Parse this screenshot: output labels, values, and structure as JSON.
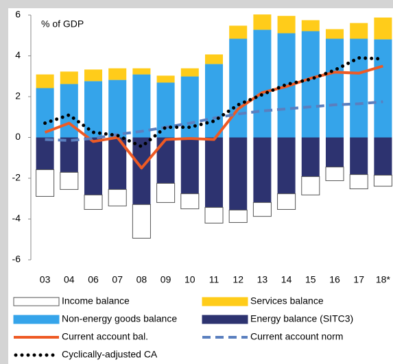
{
  "chart_data": {
    "type": "bar",
    "y_label": "% of GDP",
    "categories": [
      "03",
      "04",
      "06",
      "07",
      "08",
      "09",
      "10",
      "11",
      "12",
      "13",
      "14",
      "15",
      "16",
      "17",
      "18*"
    ],
    "ylim": [
      -6,
      6
    ],
    "yticks": [
      -6,
      -4,
      -2,
      0,
      2,
      4,
      6
    ],
    "legend": "bottom",
    "stacked": true,
    "series": [
      {
        "name": "Income balance",
        "type": "bar",
        "color": "#ffffff",
        "values": [
          -1.31,
          -0.84,
          -0.71,
          -0.81,
          -1.65,
          -0.94,
          -0.74,
          -0.77,
          -0.61,
          -0.68,
          -0.77,
          -0.9,
          -0.67,
          -0.7,
          -0.54
        ]
      },
      {
        "name": "Services balance",
        "type": "bar",
        "color": "#ffcc1a",
        "values": [
          0.67,
          0.61,
          0.57,
          0.57,
          0.3,
          0.34,
          0.4,
          0.47,
          0.64,
          0.75,
          0.85,
          0.54,
          0.47,
          0.77,
          1.07
        ]
      },
      {
        "name": "Non-energy goods balance",
        "type": "bar",
        "color": "#35a4ea",
        "values": [
          2.42,
          2.62,
          2.76,
          2.82,
          3.09,
          2.69,
          2.99,
          3.6,
          4.84,
          5.28,
          5.11,
          5.21,
          4.84,
          4.84,
          4.81
        ]
      },
      {
        "name": "Energy balance (SITC3)",
        "type": "bar",
        "color": "#2d3370",
        "values": [
          -1.58,
          -1.71,
          -2.82,
          -2.55,
          -3.29,
          -2.25,
          -2.76,
          -3.43,
          -3.56,
          -3.19,
          -2.76,
          -1.92,
          -1.45,
          -1.82,
          -1.85
        ]
      },
      {
        "name": "Current account bal.",
        "type": "line",
        "style": "solid",
        "color": "#ee5a24",
        "values": [
          0.25,
          0.7,
          -0.2,
          0.0,
          -1.5,
          -0.1,
          -0.05,
          -0.1,
          1.4,
          2.2,
          2.5,
          2.9,
          3.2,
          3.15,
          3.5
        ]
      },
      {
        "name": "Current account norm",
        "type": "line",
        "style": "dashed",
        "color": "#5a7fbf",
        "values": [
          -0.1,
          -0.15,
          -0.05,
          0.15,
          0.3,
          0.5,
          0.7,
          0.95,
          1.15,
          1.3,
          1.4,
          1.5,
          1.6,
          1.65,
          1.75
        ]
      },
      {
        "name": "Cyclically-adjusted CA",
        "type": "line",
        "style": "dotted",
        "color": "#000000",
        "values": [
          0.7,
          1.1,
          0.25,
          0.1,
          -0.45,
          0.5,
          0.5,
          0.8,
          1.6,
          2.1,
          2.6,
          2.85,
          3.3,
          3.9,
          3.85
        ]
      }
    ]
  }
}
